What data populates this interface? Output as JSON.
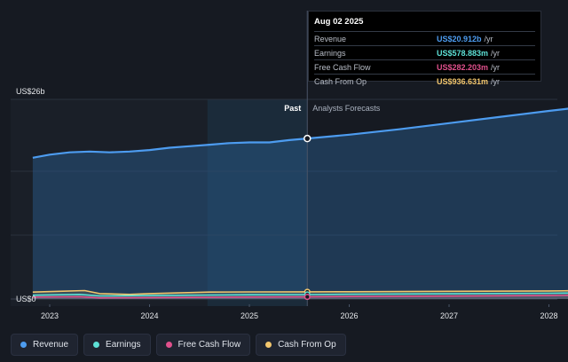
{
  "tooltip": {
    "date": "Aug 02 2025",
    "rows": [
      {
        "label": "Revenue",
        "value": "US$20.912b",
        "unit": "/yr",
        "color": "#4d9cf0"
      },
      {
        "label": "Earnings",
        "value": "US$578.883m",
        "unit": "/yr",
        "color": "#5de0d6"
      },
      {
        "label": "Free Cash Flow",
        "value": "US$282.203m",
        "unit": "/yr",
        "color": "#e0508c"
      },
      {
        "label": "Cash From Op",
        "value": "US$936.631m",
        "unit": "/yr",
        "color": "#f2c66d"
      }
    ]
  },
  "labels": {
    "past": "Past",
    "forecast": "Analysts Forecasts",
    "y_top": "US$26b",
    "y_zero": "US$0"
  },
  "legend": [
    {
      "label": "Revenue",
      "color": "#4d9cf0"
    },
    {
      "label": "Earnings",
      "color": "#5de0d6"
    },
    {
      "label": "Free Cash Flow",
      "color": "#e0508c"
    },
    {
      "label": "Cash From Op",
      "color": "#f2c66d"
    }
  ],
  "chart_data": {
    "type": "area",
    "x_ticks": [
      "2023",
      "2024",
      "2025",
      "2026",
      "2027",
      "2028"
    ],
    "ylim": [
      0,
      26
    ],
    "y_unit": "US$b",
    "divider_x": 2025.58,
    "highlight_x": [
      2024.58,
      2025.58
    ],
    "series": [
      {
        "name": "Revenue",
        "color": "#4d9cf0",
        "x": [
          2022.83,
          2023.0,
          2023.2,
          2023.4,
          2023.6,
          2023.8,
          2024.0,
          2024.2,
          2024.4,
          2024.6,
          2024.8,
          2025.0,
          2025.2,
          2025.4,
          2025.58,
          2026.0,
          2026.5,
          2027.0,
          2027.5,
          2028.0,
          2028.2
        ],
        "y": [
          18.4,
          18.8,
          19.1,
          19.2,
          19.1,
          19.2,
          19.4,
          19.7,
          19.9,
          20.1,
          20.3,
          20.4,
          20.4,
          20.7,
          20.9,
          21.4,
          22.1,
          22.9,
          23.7,
          24.5,
          24.8
        ]
      },
      {
        "name": "Cash From Op",
        "color": "#f2c66d",
        "x": [
          2022.83,
          2023.1,
          2023.35,
          2023.5,
          2023.8,
          2024.0,
          2024.3,
          2024.6,
          2025.0,
          2025.58,
          2026.0,
          2027.0,
          2028.0,
          2028.2
        ],
        "y": [
          0.9,
          1.0,
          1.1,
          0.7,
          0.6,
          0.7,
          0.8,
          0.9,
          0.93,
          0.94,
          0.95,
          1.0,
          1.05,
          1.07
        ]
      },
      {
        "name": "Earnings",
        "color": "#5de0d6",
        "x": [
          2022.83,
          2023.3,
          2023.5,
          2024.0,
          2024.6,
          2025.0,
          2025.58,
          2026.0,
          2027.0,
          2028.0,
          2028.2
        ],
        "y": [
          0.5,
          0.6,
          0.4,
          0.45,
          0.52,
          0.56,
          0.58,
          0.62,
          0.68,
          0.75,
          0.78
        ]
      },
      {
        "name": "Free Cash Flow",
        "color": "#e0508c",
        "x": [
          2022.83,
          2023.3,
          2023.5,
          2024.0,
          2024.6,
          2025.0,
          2025.58,
          2026.0,
          2027.0,
          2028.0,
          2028.2
        ],
        "y": [
          0.25,
          0.3,
          0.15,
          0.18,
          0.22,
          0.26,
          0.28,
          0.32,
          0.38,
          0.45,
          0.48
        ]
      }
    ]
  }
}
